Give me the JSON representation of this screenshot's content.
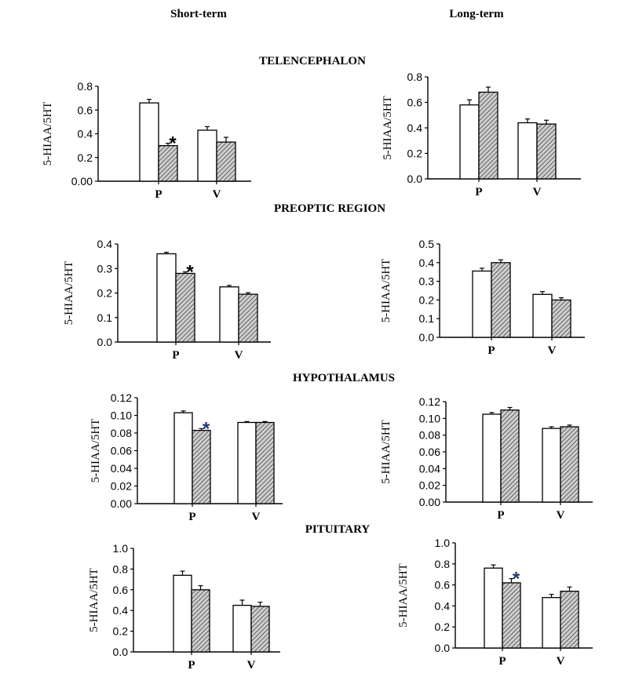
{
  "column_headers": {
    "left": "Short-term",
    "right": "Long-term"
  },
  "region_titles": [
    "TELENCEPHALON",
    "PREOPTIC REGION",
    "HYPOTHALAMUS",
    "PITUITARY"
  ],
  "colors": {
    "control_fill": "#ffffff",
    "treated_hatch": "#555555",
    "axis": "#000000",
    "asterisk_black": "#000000",
    "asterisk_blue": "#1f3a6e"
  },
  "chart_data": [
    {
      "id": "telencephalon-short",
      "type": "bar",
      "region": "TELENCEPHALON",
      "term": "Short-term",
      "ylabel": "5-HIAA/5HT",
      "categories": [
        "P",
        "V"
      ],
      "ylim": [
        0,
        0.8
      ],
      "yticks": [
        "0.00",
        "0.2",
        "0.4",
        "0.6",
        "0.8"
      ],
      "series": [
        {
          "values": [
            0.66,
            0.43
          ],
          "errors": [
            0.03,
            0.03
          ]
        },
        {
          "values": [
            0.3,
            0.33
          ],
          "errors": [
            0.02,
            0.04
          ]
        }
      ],
      "asterisk": {
        "label": "*",
        "category": "P",
        "series": 1,
        "color": "asterisk_black"
      }
    },
    {
      "id": "telencephalon-long",
      "type": "bar",
      "region": "TELENCEPHALON",
      "term": "Long-term",
      "ylabel": "5-HIAA/5HT",
      "categories": [
        "P",
        "V"
      ],
      "ylim": [
        0,
        0.8
      ],
      "yticks": [
        "0.0",
        "0.2",
        "0.4",
        "0.6",
        "0.8"
      ],
      "series": [
        {
          "values": [
            0.58,
            0.44
          ],
          "errors": [
            0.04,
            0.03
          ]
        },
        {
          "values": [
            0.68,
            0.43
          ],
          "errors": [
            0.04,
            0.03
          ]
        }
      ]
    },
    {
      "id": "preoptic-short",
      "type": "bar",
      "region": "PREOPTIC REGION",
      "term": "Short-term",
      "ylabel": "5-HIAA/5HT",
      "categories": [
        "P",
        "V"
      ],
      "ylim": [
        0,
        0.4
      ],
      "yticks": [
        "0.0",
        "0.1",
        "0.2",
        "0.3",
        "0.4"
      ],
      "series": [
        {
          "values": [
            0.36,
            0.225
          ],
          "errors": [
            0.006,
            0.006
          ]
        },
        {
          "values": [
            0.28,
            0.195
          ],
          "errors": [
            0.006,
            0.006
          ]
        }
      ],
      "asterisk": {
        "label": "*",
        "category": "P",
        "series": 1,
        "color": "asterisk_black"
      }
    },
    {
      "id": "preoptic-long",
      "type": "bar",
      "region": "PREOPTIC REGION",
      "term": "Long-term",
      "ylabel": "5-HIAA/5HT",
      "categories": [
        "P",
        "V"
      ],
      "ylim": [
        0,
        0.5
      ],
      "yticks": [
        "0.0",
        "0.1",
        "0.2",
        "0.3",
        "0.4",
        "0.5"
      ],
      "series": [
        {
          "values": [
            0.355,
            0.23
          ],
          "errors": [
            0.015,
            0.015
          ]
        },
        {
          "values": [
            0.4,
            0.2
          ],
          "errors": [
            0.015,
            0.012
          ]
        }
      ]
    },
    {
      "id": "hypothalamus-short",
      "type": "bar",
      "region": "HYPOTHALAMUS",
      "term": "Short-term",
      "ylabel": "5-HIAA/5HT",
      "categories": [
        "P",
        "V"
      ],
      "ylim": [
        0,
        0.12
      ],
      "yticks": [
        "0.00",
        "0.02",
        "0.04",
        "0.06",
        "0.08",
        "0.10",
        "0.12"
      ],
      "series": [
        {
          "values": [
            0.103,
            0.092
          ],
          "errors": [
            0.002,
            0.001
          ]
        },
        {
          "values": [
            0.083,
            0.092
          ],
          "errors": [
            0.002,
            0.001
          ]
        }
      ],
      "asterisk": {
        "label": "*",
        "category": "P",
        "series": 1,
        "color": "asterisk_blue"
      }
    },
    {
      "id": "hypothalamus-long",
      "type": "bar",
      "region": "HYPOTHALAMUS",
      "term": "Long-term",
      "ylabel": "5-HIAA/5HT",
      "categories": [
        "P",
        "V"
      ],
      "ylim": [
        0,
        0.12
      ],
      "yticks": [
        "0.00",
        "0.02",
        "0.04",
        "0.06",
        "0.08",
        "0.10",
        "0.12"
      ],
      "series": [
        {
          "values": [
            0.105,
            0.088
          ],
          "errors": [
            0.002,
            0.002
          ]
        },
        {
          "values": [
            0.11,
            0.09
          ],
          "errors": [
            0.003,
            0.002
          ]
        }
      ]
    },
    {
      "id": "pituitary-short",
      "type": "bar",
      "region": "PITUITARY",
      "term": "Short-term",
      "ylabel": "5-HIAA/5HT",
      "categories": [
        "P",
        "V"
      ],
      "ylim": [
        0,
        1.0
      ],
      "yticks": [
        "0.0",
        "0.2",
        "0.4",
        "0.6",
        "0.8",
        "1.0"
      ],
      "series": [
        {
          "values": [
            0.74,
            0.45
          ],
          "errors": [
            0.04,
            0.05
          ]
        },
        {
          "values": [
            0.6,
            0.44
          ],
          "errors": [
            0.04,
            0.04
          ]
        }
      ]
    },
    {
      "id": "pituitary-long",
      "type": "bar",
      "region": "PITUITARY",
      "term": "Long-term",
      "ylabel": "5-HIAA/5HT",
      "categories": [
        "P",
        "V"
      ],
      "ylim": [
        0,
        1.0
      ],
      "yticks": [
        "0.0",
        "0.2",
        "0.4",
        "0.6",
        "0.8",
        "1.0"
      ],
      "series": [
        {
          "values": [
            0.76,
            0.48
          ],
          "errors": [
            0.03,
            0.03
          ]
        },
        {
          "values": [
            0.62,
            0.54
          ],
          "errors": [
            0.04,
            0.04
          ]
        }
      ],
      "asterisk": {
        "label": "*",
        "category": "P",
        "series": 1,
        "color": "asterisk_blue"
      }
    }
  ]
}
